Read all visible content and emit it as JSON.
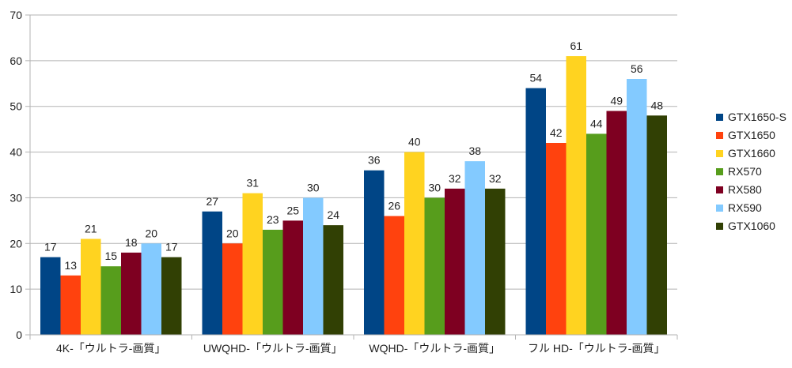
{
  "chart_data": {
    "type": "bar",
    "categories": [
      "4K-「ウルトラ-画質」",
      "UWQHD-「ウルトラ-画質」",
      "WQHD-「ウルトラ-画質」",
      "フル HD-「ウルトラ-画質」"
    ],
    "series": [
      {
        "name": "GTX1650-S",
        "color": "#004586",
        "values": [
          17,
          27,
          36,
          54
        ]
      },
      {
        "name": "GTX1650",
        "color": "#ff420e",
        "values": [
          13,
          20,
          26,
          42
        ]
      },
      {
        "name": "GTX1660",
        "color": "#ffd320",
        "values": [
          21,
          31,
          40,
          61
        ]
      },
      {
        "name": "RX570",
        "color": "#579d1c",
        "values": [
          15,
          23,
          30,
          44
        ]
      },
      {
        "name": "RX580",
        "color": "#7e0021",
        "values": [
          18,
          25,
          32,
          49
        ]
      },
      {
        "name": "RX590",
        "color": "#83caff",
        "values": [
          20,
          30,
          38,
          56
        ]
      },
      {
        "name": "GTX1060",
        "color": "#314004",
        "values": [
          17,
          24,
          32,
          48
        ]
      }
    ],
    "yticks": [
      0,
      10,
      20,
      30,
      40,
      50,
      60,
      70
    ],
    "ylim": [
      0,
      70
    ],
    "grid": true,
    "legend_position": "right",
    "data_labels": true
  }
}
